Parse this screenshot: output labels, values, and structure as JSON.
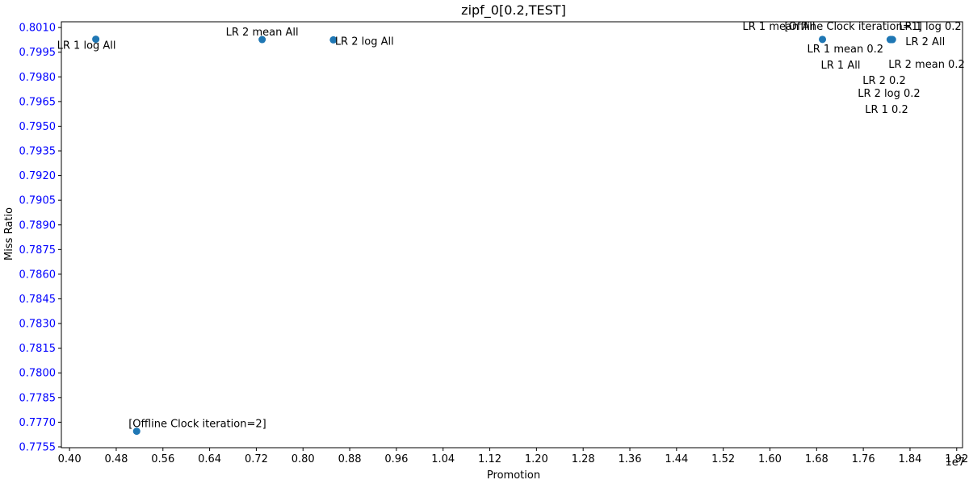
{
  "chart_data": {
    "type": "scatter",
    "title": "zipf_0[0.2,TEST]",
    "xlabel": "Promotion",
    "ylabel": "Miss Ratio",
    "x_offset_label": "1e7",
    "xlim": [
      3.86,
      19.3
    ],
    "ylim": [
      0.77545,
      0.80135
    ],
    "xticks": [
      0.4,
      0.48,
      0.56,
      0.64,
      0.72,
      0.8,
      0.88,
      0.96,
      1.04,
      1.12,
      1.2,
      1.28,
      1.36,
      1.44,
      1.52,
      1.6,
      1.68,
      1.76,
      1.84,
      1.92
    ],
    "xtick_labels": [
      "0.40",
      "0.48",
      "0.56",
      "0.64",
      "0.72",
      "0.80",
      "0.88",
      "0.96",
      "1.04",
      "1.12",
      "1.20",
      "1.28",
      "1.36",
      "1.44",
      "1.52",
      "1.60",
      "1.68",
      "1.76",
      "1.84",
      "1.92"
    ],
    "yticks": [
      0.7755,
      0.777,
      0.7785,
      0.78,
      0.7815,
      0.783,
      0.7845,
      0.786,
      0.7875,
      0.789,
      0.7905,
      0.792,
      0.7935,
      0.795,
      0.7965,
      0.798,
      0.7995,
      0.801
    ],
    "ytick_labels": [
      "0.7755",
      "0.7770",
      "0.7785",
      "0.7800",
      "0.7815",
      "0.7830",
      "0.7845",
      "0.7860",
      "0.7875",
      "0.7890",
      "0.7905",
      "0.7920",
      "0.7935",
      "0.7950",
      "0.7965",
      "0.7980",
      "0.7995",
      "0.8010"
    ],
    "grid": false,
    "marker_color": "#1f77b4",
    "ytick_color": "#0000ff",
    "points": [
      {
        "x": 4.45,
        "y": 0.80029
      },
      {
        "x": 7.3,
        "y": 0.80027
      },
      {
        "x": 8.52,
        "y": 0.80025
      },
      {
        "x": 5.15,
        "y": 0.77645
      },
      {
        "x": 16.9,
        "y": 0.80028
      },
      {
        "x": 18.06,
        "y": 0.80027
      },
      {
        "x": 18.08,
        "y": 0.80027
      },
      {
        "x": 18.1,
        "y": 0.80027
      }
    ],
    "annotations": [
      {
        "text": "LR 1 log All",
        "x": 4.45,
        "y": 0.80029
      },
      {
        "text": "LR 2 mean All",
        "x": 7.3,
        "y": 0.80027
      },
      {
        "text": "LR 2 log All",
        "x": 8.52,
        "y": 0.80025
      },
      {
        "text": "[Offline Clock iteration=2]",
        "x": 5.15,
        "y": 0.77645
      },
      {
        "text": "LR 1 mean All",
        "x": 16.9,
        "y": 0.80028
      },
      {
        "text": "[Offline Clock iteration=1]",
        "x": 16.9,
        "y": 0.80028
      },
      {
        "text": "LR 1 mean 0.2",
        "x": 16.9,
        "y": 0.80028
      },
      {
        "text": "LR 1 All",
        "x": 16.9,
        "y": 0.80028
      },
      {
        "text": "LR 1 log 0.2",
        "x": 18.1,
        "y": 0.80027
      },
      {
        "text": "LR 2 All",
        "x": 18.1,
        "y": 0.80027
      },
      {
        "text": "LR 2 mean 0.2",
        "x": 18.1,
        "y": 0.80027
      },
      {
        "text": "LR 2 0.2",
        "x": 18.1,
        "y": 0.80027
      },
      {
        "text": "LR 2 log 0.2",
        "x": 18.1,
        "y": 0.80027
      },
      {
        "text": "LR 1 0.2",
        "x": 18.1,
        "y": 0.80027
      }
    ]
  }
}
